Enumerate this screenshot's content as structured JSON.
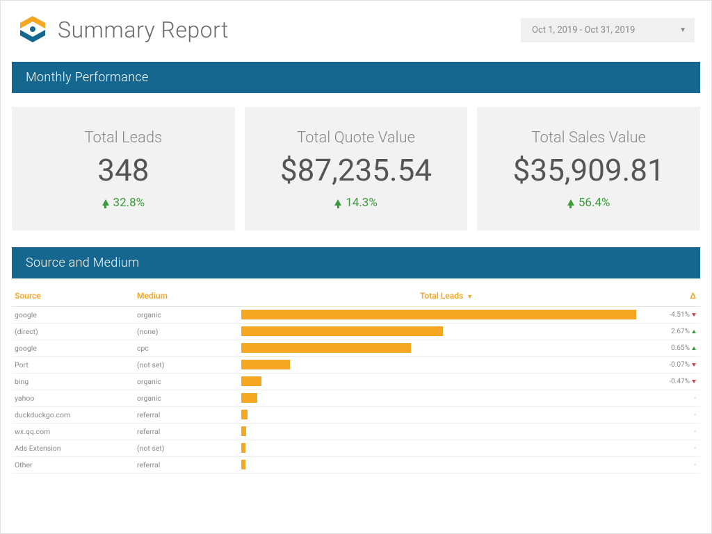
{
  "header": {
    "title": "Summary Report",
    "date_range": "Oct 1, 2019 - Oct 31, 2019",
    "logo_colors": {
      "top": "#f5a623",
      "bottom": "#15678f"
    }
  },
  "sections": {
    "monthly_performance": "Monthly Performance",
    "source_medium": "Source and Medium"
  },
  "colors": {
    "section_header_bg": "#15678f",
    "kpi_bg": "#f2f2f2",
    "accent_orange": "#f5a623",
    "positive": "#3a9b3a",
    "negative": "#d64545",
    "text_muted": "#888888",
    "text_value": "#555555",
    "border": "#e5e5e5",
    "bar_fill": "#f5a623"
  },
  "kpis": [
    {
      "label": "Total Leads",
      "value": "348",
      "change": "32.8%",
      "direction": "up"
    },
    {
      "label": "Total Quote Value",
      "value": "$87,235.54",
      "change": "14.3%",
      "direction": "up"
    },
    {
      "label": "Total Sales Value",
      "value": "$35,909.81",
      "change": "56.4%",
      "direction": "up"
    }
  ],
  "source_table": {
    "columns": {
      "source": "Source",
      "medium": "Medium",
      "total_leads": "Total Leads",
      "delta": "Δ"
    },
    "sort_column": "total_leads",
    "sort_dir": "desc",
    "bar_max_pct": 100,
    "rows": [
      {
        "source": "google",
        "medium": "organic",
        "bar_pct": 98,
        "delta": "-4.51%",
        "delta_dir": "down"
      },
      {
        "source": "(direct)",
        "medium": "(none)",
        "bar_pct": 50,
        "delta": "2.67%",
        "delta_dir": "up"
      },
      {
        "source": "google",
        "medium": "cpc",
        "bar_pct": 42,
        "delta": "0.65%",
        "delta_dir": "up"
      },
      {
        "source": "Port",
        "medium": "(not set)",
        "bar_pct": 12,
        "delta": "-0.07%",
        "delta_dir": "down"
      },
      {
        "source": "bing",
        "medium": "organic",
        "bar_pct": 5,
        "delta": "-0.47%",
        "delta_dir": "down"
      },
      {
        "source": "yahoo",
        "medium": "organic",
        "bar_pct": 4,
        "delta": "-",
        "delta_dir": "none"
      },
      {
        "source": "duckduckgo.com",
        "medium": "referral",
        "bar_pct": 1.5,
        "delta": "-",
        "delta_dir": "none"
      },
      {
        "source": "wx.qq.com",
        "medium": "referral",
        "bar_pct": 1.2,
        "delta": "-",
        "delta_dir": "none"
      },
      {
        "source": "Ads Extension",
        "medium": "(not set)",
        "bar_pct": 1,
        "delta": "-",
        "delta_dir": "none"
      },
      {
        "source": "Other",
        "medium": "referral",
        "bar_pct": 1,
        "delta": "-",
        "delta_dir": "none"
      }
    ]
  }
}
